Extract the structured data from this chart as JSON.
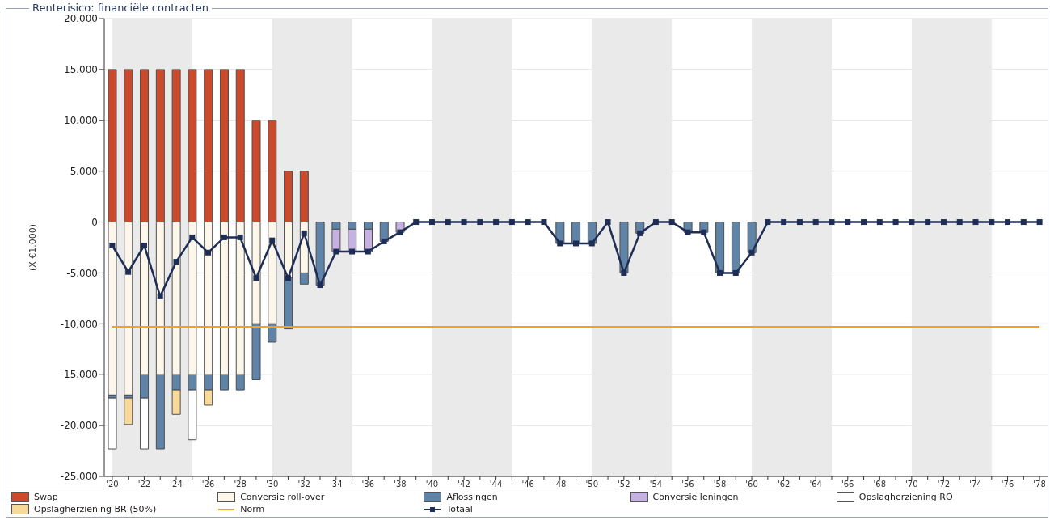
{
  "chart_data": {
    "type": "bar",
    "title": "Renterisico: financiële contracten",
    "ylabel": "(X €1.000)",
    "x": [
      2020,
      2021,
      2022,
      2023,
      2024,
      2025,
      2026,
      2027,
      2028,
      2029,
      2030,
      2031,
      2032,
      2033,
      2034,
      2035,
      2036,
      2037,
      2038,
      2039,
      2040,
      2041,
      2042,
      2043,
      2044,
      2045,
      2046,
      2047,
      2048,
      2049,
      2050,
      2051,
      2052,
      2053,
      2054,
      2055,
      2056,
      2057,
      2058,
      2059,
      2060,
      2061,
      2062,
      2063,
      2064,
      2065,
      2066,
      2067,
      2068,
      2069,
      2070,
      2071,
      2072,
      2073,
      2074,
      2075,
      2076,
      2077,
      2078
    ],
    "xlim": [
      2019.5,
      2078.5
    ],
    "xticks": [
      {
        "value": 2020,
        "label": "'20"
      },
      {
        "value": 2021,
        "label": null
      },
      {
        "value": 2022,
        "label": "'22"
      },
      {
        "value": 2023,
        "label": null
      },
      {
        "value": 2024,
        "label": "'24"
      },
      {
        "value": 2025,
        "label": null
      },
      {
        "value": 2026,
        "label": "'26"
      },
      {
        "value": 2027,
        "label": null
      },
      {
        "value": 2028,
        "label": "'28"
      },
      {
        "value": 2029,
        "label": null
      },
      {
        "value": 2030,
        "label": "'30"
      },
      {
        "value": 2031,
        "label": null
      },
      {
        "value": 2032,
        "label": "'32"
      },
      {
        "value": 2033,
        "label": null
      },
      {
        "value": 2034,
        "label": "'34"
      },
      {
        "value": 2035,
        "label": null
      },
      {
        "value": 2036,
        "label": "'36"
      },
      {
        "value": 2037,
        "label": null
      },
      {
        "value": 2038,
        "label": "'38"
      },
      {
        "value": 2039,
        "label": null
      },
      {
        "value": 2040,
        "label": "'40"
      },
      {
        "value": 2041,
        "label": null
      },
      {
        "value": 2042,
        "label": "'42"
      },
      {
        "value": 2043,
        "label": null
      },
      {
        "value": 2044,
        "label": "'44"
      },
      {
        "value": 2045,
        "label": null
      },
      {
        "value": 2046,
        "label": "'46"
      },
      {
        "value": 2047,
        "label": null
      },
      {
        "value": 2048,
        "label": "'48"
      },
      {
        "value": 2049,
        "label": null
      },
      {
        "value": 2050,
        "label": "'50"
      },
      {
        "value": 2051,
        "label": null
      },
      {
        "value": 2052,
        "label": "'52"
      },
      {
        "value": 2053,
        "label": null
      },
      {
        "value": 2054,
        "label": "'54"
      },
      {
        "value": 2055,
        "label": null
      },
      {
        "value": 2056,
        "label": "'56"
      },
      {
        "value": 2057,
        "label": null
      },
      {
        "value": 2058,
        "label": "'58"
      },
      {
        "value": 2059,
        "label": null
      },
      {
        "value": 2060,
        "label": "'60"
      },
      {
        "value": 2061,
        "label": null
      },
      {
        "value": 2062,
        "label": "'62"
      },
      {
        "value": 2063,
        "label": null
      },
      {
        "value": 2064,
        "label": "'64"
      },
      {
        "value": 2065,
        "label": null
      },
      {
        "value": 2066,
        "label": "'66"
      },
      {
        "value": 2067,
        "label": null
      },
      {
        "value": 2068,
        "label": "'68"
      },
      {
        "value": 2069,
        "label": null
      },
      {
        "value": 2070,
        "label": "'70"
      },
      {
        "value": 2071,
        "label": null
      },
      {
        "value": 2072,
        "label": "'72"
      },
      {
        "value": 2073,
        "label": null
      },
      {
        "value": 2074,
        "label": "'74"
      },
      {
        "value": 2075,
        "label": null
      },
      {
        "value": 2076,
        "label": "'76"
      },
      {
        "value": 2077,
        "label": null
      },
      {
        "value": 2078,
        "label": "'78"
      }
    ],
    "stacked": true,
    "series": [
      {
        "name": "Swap",
        "color": "#cc4a2c",
        "values": [
          15000,
          15000,
          15000,
          15000,
          15000,
          15000,
          15000,
          15000,
          15000,
          10000,
          10000,
          5000,
          5000,
          null,
          null,
          null,
          null,
          null,
          null,
          null,
          null,
          null,
          null,
          null,
          null,
          null,
          null,
          null,
          null,
          null,
          null,
          null,
          null,
          null,
          null,
          null,
          null,
          null,
          null,
          null,
          null,
          null,
          null,
          null,
          null,
          null,
          null,
          null,
          null,
          null,
          null,
          null,
          null,
          null,
          null,
          null,
          null,
          null,
          null
        ]
      },
      {
        "name": "Conversie roll-over",
        "color": "#fcf7ea",
        "values": [
          -17000,
          -17000,
          -15000,
          -15000,
          -15000,
          -15000,
          -15000,
          -15000,
          -15000,
          -10000,
          -10000,
          -5500,
          -5000,
          null,
          null,
          null,
          null,
          null,
          null,
          null,
          null,
          null,
          null,
          null,
          null,
          null,
          null,
          null,
          null,
          null,
          null,
          null,
          null,
          null,
          null,
          null,
          null,
          null,
          null,
          null,
          null,
          null,
          null,
          null,
          null,
          null,
          null,
          null,
          null,
          null,
          null,
          null,
          null,
          null,
          null,
          null,
          null,
          null,
          null
        ]
      },
      {
        "name": "Aflossingen",
        "color": "#5f84a8",
        "values": [
          -300,
          -300,
          -2300,
          -7300,
          -1500,
          -1500,
          -1500,
          -1500,
          -1500,
          -5500,
          -1800,
          -5000,
          -1100,
          -6200,
          -700,
          -700,
          -700,
          -1900,
          null,
          null,
          null,
          null,
          null,
          null,
          null,
          null,
          null,
          null,
          -2100,
          -2100,
          -2100,
          null,
          -5000,
          -1100,
          null,
          null,
          -1000,
          -1000,
          -5000,
          -5000,
          -3000,
          null,
          null,
          null,
          null,
          null,
          null,
          null,
          null,
          null,
          null,
          null,
          null,
          null,
          null,
          null,
          null,
          null,
          null
        ]
      },
      {
        "name": "Conversie leningen",
        "color": "#c5b2e0",
        "values": [
          null,
          null,
          null,
          null,
          null,
          null,
          null,
          null,
          null,
          null,
          null,
          null,
          null,
          null,
          -2200,
          -2200,
          -2200,
          null,
          -1000,
          null,
          null,
          null,
          null,
          null,
          null,
          null,
          null,
          null,
          null,
          null,
          null,
          null,
          null,
          null,
          null,
          null,
          null,
          null,
          null,
          null,
          null,
          null,
          null,
          null,
          null,
          null,
          null,
          null,
          null,
          null,
          null,
          null,
          null,
          null,
          null,
          null,
          null,
          null,
          null
        ]
      },
      {
        "name": "Opslagherziening RO",
        "color": "#ffffff",
        "values": [
          -5000,
          null,
          -5000,
          null,
          null,
          -4900,
          null,
          null,
          null,
          null,
          null,
          null,
          null,
          null,
          null,
          null,
          null,
          null,
          null,
          null,
          null,
          null,
          null,
          null,
          null,
          null,
          null,
          null,
          null,
          null,
          null,
          null,
          null,
          null,
          null,
          null,
          null,
          null,
          null,
          null,
          null,
          null,
          null,
          null,
          null,
          null,
          null,
          null,
          null,
          null,
          null,
          null,
          null,
          null,
          null,
          null,
          null,
          null,
          null
        ]
      },
      {
        "name": "Opslagherziening BR (50%)",
        "color": "#f8d999",
        "values": [
          null,
          -2600,
          null,
          null,
          -2400,
          null,
          -1500,
          null,
          null,
          null,
          null,
          null,
          null,
          null,
          null,
          null,
          null,
          null,
          null,
          null,
          null,
          null,
          null,
          null,
          null,
          null,
          null,
          null,
          null,
          null,
          null,
          null,
          null,
          null,
          null,
          null,
          null,
          null,
          null,
          null,
          null,
          null,
          null,
          null,
          null,
          null,
          null,
          null,
          null,
          null,
          null,
          null,
          null,
          null,
          null,
          null,
          null,
          null,
          null
        ]
      },
      {
        "name": "Norm",
        "type": "line",
        "marker": "none",
        "color": "#f5a11c",
        "values": [
          -10300,
          -10300,
          -10300,
          -10300,
          -10300,
          -10300,
          -10300,
          -10300,
          -10300,
          -10300,
          -10300,
          -10300,
          -10300,
          -10300,
          -10300,
          -10300,
          -10300,
          -10300,
          -10300,
          -10300,
          -10300,
          -10300,
          -10300,
          -10300,
          -10300,
          -10300,
          -10300,
          -10300,
          -10300,
          -10300,
          -10300,
          -10300,
          -10300,
          -10300,
          -10300,
          -10300,
          -10300,
          -10300,
          -10300,
          -10300,
          -10300,
          -10300,
          -10300,
          -10300,
          -10300,
          -10300,
          -10300,
          -10300,
          -10300,
          -10300,
          -10300,
          -10300,
          -10300,
          -10300,
          -10300,
          -10300,
          -10300,
          -10300,
          -10300
        ]
      },
      {
        "name": "Totaal",
        "type": "line",
        "marker": "square",
        "color": "#1e2d55",
        "values": [
          -2300,
          -4900,
          -2300,
          -7300,
          -3900,
          -1500,
          -3000,
          -1500,
          -1500,
          -5500,
          -1800,
          -5500,
          -1100,
          -6200,
          -2900,
          -2900,
          -2900,
          -1900,
          -1000,
          0,
          0,
          0,
          0,
          0,
          0,
          0,
          0,
          0,
          -2100,
          -2100,
          -2100,
          0,
          -5000,
          -1100,
          0,
          0,
          -1000,
          -1000,
          -5000,
          -5000,
          -3000,
          0,
          0,
          0,
          0,
          0,
          0,
          0,
          0,
          0,
          0,
          0,
          0,
          0,
          0,
          0,
          0,
          0,
          0
        ]
      }
    ],
    "ylim": [
      -25000,
      20000
    ],
    "yticks": [
      {
        "value": -25000,
        "label": "-25.000"
      },
      {
        "value": -20000,
        "label": "-20.000"
      },
      {
        "value": -15000,
        "label": "-15.000"
      },
      {
        "value": -10000,
        "label": "-10.000"
      },
      {
        "value": -5000,
        "label": "-5.000"
      },
      {
        "value": 0,
        "label": "0"
      },
      {
        "value": 5000,
        "label": "5.000"
      },
      {
        "value": 10000,
        "label": "10.000"
      },
      {
        "value": 15000,
        "label": "15.000"
      },
      {
        "value": 20000,
        "label": "20.000"
      }
    ],
    "bands": [
      {
        "axis": "x",
        "from": 2020,
        "to": 2025,
        "color": "#eaeaea"
      },
      {
        "axis": "x",
        "from": 2030,
        "to": 2035,
        "color": "#eaeaea"
      },
      {
        "axis": "x",
        "from": 2040,
        "to": 2045,
        "color": "#eaeaea"
      },
      {
        "axis": "x",
        "from": 2050,
        "to": 2055,
        "color": "#eaeaea"
      },
      {
        "axis": "x",
        "from": 2060,
        "to": 2065,
        "color": "#eaeaea"
      },
      {
        "axis": "x",
        "from": 2070,
        "to": 2075,
        "color": "#eaeaea"
      }
    ],
    "grid": "y",
    "legend": "bottom"
  }
}
